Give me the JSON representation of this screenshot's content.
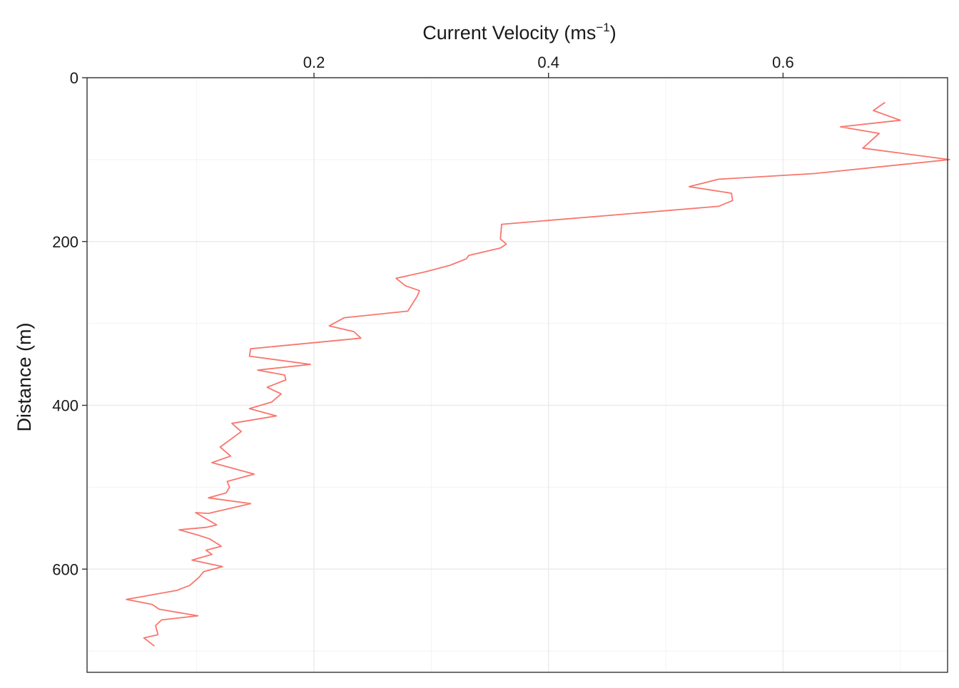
{
  "chart_data": {
    "type": "line",
    "title": "",
    "xlabel": "Current Velocity (ms",
    "xlabel_superscript": "−1",
    "xlabel_suffix": ")",
    "ylabel": "Distance (m)",
    "x_axis_position": "top",
    "y_axis_reversed": true,
    "xlim": [
      0.0065,
      0.7403
    ],
    "ylim": [
      0,
      726
    ],
    "x_ticks": [
      0.2,
      0.4,
      0.6
    ],
    "x_tick_labels": [
      "0.2",
      "0.4",
      "0.6"
    ],
    "x_minor_gridlines": [
      0.1,
      0.3,
      0.5,
      0.7
    ],
    "y_ticks": [
      0,
      200,
      400,
      600
    ],
    "y_tick_labels": [
      "0",
      "200",
      "400",
      "600"
    ],
    "y_minor_gridlines": [
      100,
      300,
      500,
      700
    ],
    "grid": true,
    "legend": "none",
    "series": [
      {
        "color": "#F8766D",
        "x": [
          0.687,
          0.677,
          0.7,
          0.649,
          0.682,
          0.668,
          0.742,
          0.627,
          0.545,
          0.52,
          0.556,
          0.557,
          0.545,
          0.36,
          0.359,
          0.364,
          0.359,
          0.332,
          0.33,
          0.316,
          0.295,
          0.27,
          0.278,
          0.29,
          0.288,
          0.28,
          0.226,
          0.213,
          0.234,
          0.24,
          0.146,
          0.145,
          0.197,
          0.152,
          0.175,
          0.176,
          0.16,
          0.172,
          0.168,
          0.164,
          0.145,
          0.168,
          0.13,
          0.138,
          0.12,
          0.129,
          0.113,
          0.149,
          0.126,
          0.128,
          0.125,
          0.11,
          0.146,
          0.11,
          0.099,
          0.117,
          0.108,
          0.085,
          0.1,
          0.111,
          0.121,
          0.108,
          0.113,
          0.096,
          0.122,
          0.106,
          0.102,
          0.094,
          0.083,
          0.04,
          0.062,
          0.068,
          0.101,
          0.07,
          0.065,
          0.067,
          0.055,
          0.064
        ],
        "y": [
          30,
          40,
          52,
          60,
          68,
          86,
          100,
          117,
          124,
          133,
          141,
          150,
          157,
          179,
          197,
          203,
          208,
          217,
          221,
          229,
          237,
          245,
          254,
          260,
          267,
          285,
          293,
          303,
          310,
          318,
          331,
          340,
          350,
          357,
          363,
          369,
          378,
          386,
          391,
          396,
          404,
          413,
          422,
          432,
          451,
          462,
          470,
          484,
          493,
          500,
          507,
          513,
          520,
          532,
          531,
          546,
          549,
          552,
          558,
          563,
          572,
          577,
          582,
          589,
          597,
          603,
          610,
          620,
          626,
          637,
          643,
          649,
          657,
          662,
          669,
          680,
          684,
          694
        ]
      }
    ]
  }
}
